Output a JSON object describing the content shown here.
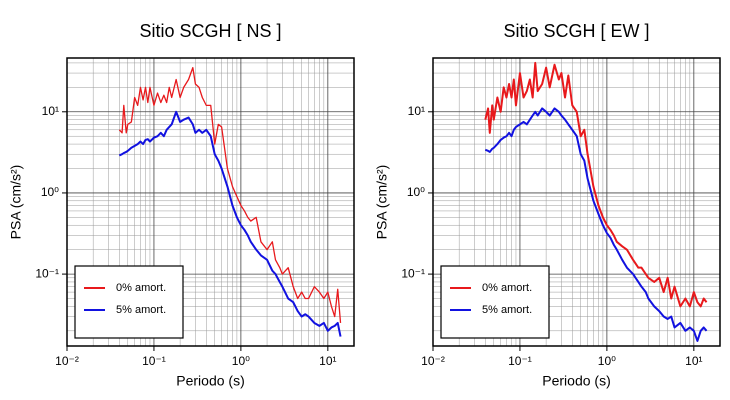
{
  "chart_data": [
    {
      "type": "line",
      "title": "Sitio SCGH [ NS ]",
      "xlabel": "Periodo (s)",
      "ylabel": "PSA (cm/s²)",
      "xscale": "log",
      "yscale": "log",
      "grid": true,
      "legend": "lower left",
      "xlim": [
        0.01,
        20
      ],
      "ylim": [
        0.013,
        46
      ],
      "xticks": [
        {
          "value": 0.01,
          "label": "10⁻²"
        },
        {
          "value": 0.1,
          "label": "10⁻¹"
        },
        {
          "value": 1,
          "label": "10⁰"
        },
        {
          "value": 10,
          "label": "10¹"
        }
      ],
      "yticks": [
        {
          "value": 0.1,
          "label": "10⁻¹"
        },
        {
          "value": 1,
          "label": "10⁰"
        },
        {
          "value": 10,
          "label": "10¹"
        }
      ],
      "x": [
        0.04,
        0.043,
        0.045,
        0.048,
        0.05,
        0.055,
        0.06,
        0.065,
        0.07,
        0.075,
        0.08,
        0.085,
        0.09,
        0.1,
        0.11,
        0.12,
        0.13,
        0.14,
        0.15,
        0.16,
        0.18,
        0.2,
        0.22,
        0.25,
        0.28,
        0.3,
        0.33,
        0.36,
        0.4,
        0.45,
        0.5,
        0.55,
        0.6,
        0.7,
        0.8,
        0.9,
        1.0,
        1.1,
        1.2,
        1.3,
        1.5,
        1.7,
        2.0,
        2.3,
        2.5,
        2.8,
        3.0,
        3.5,
        4.0,
        4.5,
        5,
        5.5,
        6,
        7,
        8,
        9,
        10,
        11,
        12,
        13,
        14
      ],
      "series": [
        {
          "name": "0% amort.",
          "color": "#e8191c",
          "width": 1.3,
          "values": [
            6,
            5.5,
            12,
            5.5,
            7,
            7.5,
            15,
            12,
            20,
            14,
            20,
            13,
            20,
            12,
            17,
            13,
            16,
            13,
            20,
            15,
            25,
            15,
            20,
            25,
            35,
            22,
            20,
            15,
            12,
            12,
            4,
            7,
            6.5,
            2,
            1.2,
            0.9,
            0.7,
            0.6,
            0.5,
            0.45,
            0.5,
            0.25,
            0.2,
            0.25,
            0.15,
            0.12,
            0.1,
            0.12,
            0.07,
            0.05,
            0.06,
            0.05,
            0.05,
            0.07,
            0.06,
            0.05,
            0.06,
            0.04,
            0.03,
            0.065,
            0.025
          ]
        },
        {
          "name": "5% amort.",
          "color": "#1212e0",
          "width": 2,
          "values": [
            2.9,
            3.0,
            3.1,
            3.2,
            3.3,
            3.6,
            3.8,
            4.0,
            4.3,
            4.0,
            4.5,
            4.6,
            4.3,
            4.8,
            5,
            5.5,
            5,
            6,
            6.5,
            7,
            10,
            7.5,
            8,
            8.5,
            7,
            5.5,
            6,
            5.5,
            6,
            5,
            3,
            2.5,
            2,
            1.2,
            0.7,
            0.5,
            0.4,
            0.35,
            0.3,
            0.25,
            0.2,
            0.17,
            0.15,
            0.11,
            0.1,
            0.08,
            0.07,
            0.05,
            0.045,
            0.035,
            0.03,
            0.032,
            0.03,
            0.025,
            0.023,
            0.025,
            0.02,
            0.022,
            0.023,
            0.025,
            0.017
          ]
        }
      ]
    },
    {
      "type": "line",
      "title": "Sitio SCGH [ EW ]",
      "xlabel": "Periodo (s)",
      "ylabel": "PSA (cm/s²)",
      "xscale": "log",
      "yscale": "log",
      "grid": true,
      "legend": "lower left",
      "xlim": [
        0.01,
        20
      ],
      "ylim": [
        0.013,
        46
      ],
      "xticks": [
        {
          "value": 0.01,
          "label": "10⁻²"
        },
        {
          "value": 0.1,
          "label": "10⁻¹"
        },
        {
          "value": 1,
          "label": "10⁰"
        },
        {
          "value": 10,
          "label": "10¹"
        }
      ],
      "yticks": [
        {
          "value": 0.1,
          "label": "10⁻¹"
        },
        {
          "value": 1,
          "label": "10⁰"
        },
        {
          "value": 10,
          "label": "10¹"
        }
      ],
      "x": [
        0.04,
        0.043,
        0.045,
        0.048,
        0.05,
        0.055,
        0.06,
        0.065,
        0.07,
        0.075,
        0.08,
        0.085,
        0.09,
        0.1,
        0.11,
        0.12,
        0.13,
        0.14,
        0.15,
        0.16,
        0.18,
        0.2,
        0.22,
        0.25,
        0.28,
        0.3,
        0.33,
        0.36,
        0.4,
        0.45,
        0.5,
        0.55,
        0.6,
        0.7,
        0.8,
        0.9,
        1.0,
        1.1,
        1.2,
        1.3,
        1.5,
        1.7,
        2.0,
        2.3,
        2.5,
        2.8,
        3.0,
        3.5,
        4.0,
        4.5,
        5,
        5.5,
        6,
        7,
        8,
        9,
        10,
        11,
        12,
        13,
        14
      ],
      "series": [
        {
          "name": "0% amort.",
          "color": "#e8191c",
          "width": 2,
          "values": [
            8,
            11,
            5.5,
            12,
            8,
            15,
            10,
            20,
            15,
            22,
            15,
            25,
            12,
            30,
            15,
            18,
            25,
            15,
            40,
            18,
            22,
            35,
            20,
            38,
            25,
            30,
            15,
            28,
            12,
            10,
            5,
            6,
            3,
            1.2,
            0.7,
            0.5,
            0.4,
            0.35,
            0.3,
            0.25,
            0.22,
            0.2,
            0.15,
            0.12,
            0.12,
            0.1,
            0.09,
            0.08,
            0.09,
            0.06,
            0.09,
            0.05,
            0.07,
            0.04,
            0.05,
            0.04,
            0.06,
            0.045,
            0.04,
            0.05,
            0.045
          ]
        },
        {
          "name": "5% amort.",
          "color": "#1212e0",
          "width": 2,
          "values": [
            3.4,
            3.3,
            3.2,
            3.5,
            3.6,
            4,
            4.5,
            4.8,
            5,
            5.5,
            5,
            6,
            6.5,
            7,
            7.5,
            7,
            8,
            9,
            10,
            9,
            11,
            10,
            9,
            11,
            10,
            9,
            8,
            7,
            6,
            5,
            3,
            2.5,
            1.5,
            0.8,
            0.55,
            0.4,
            0.32,
            0.28,
            0.23,
            0.2,
            0.15,
            0.12,
            0.1,
            0.08,
            0.07,
            0.06,
            0.05,
            0.04,
            0.035,
            0.03,
            0.028,
            0.03,
            0.022,
            0.025,
            0.02,
            0.022,
            0.02,
            0.015,
            0.02,
            0.022,
            0.02
          ]
        }
      ]
    }
  ]
}
